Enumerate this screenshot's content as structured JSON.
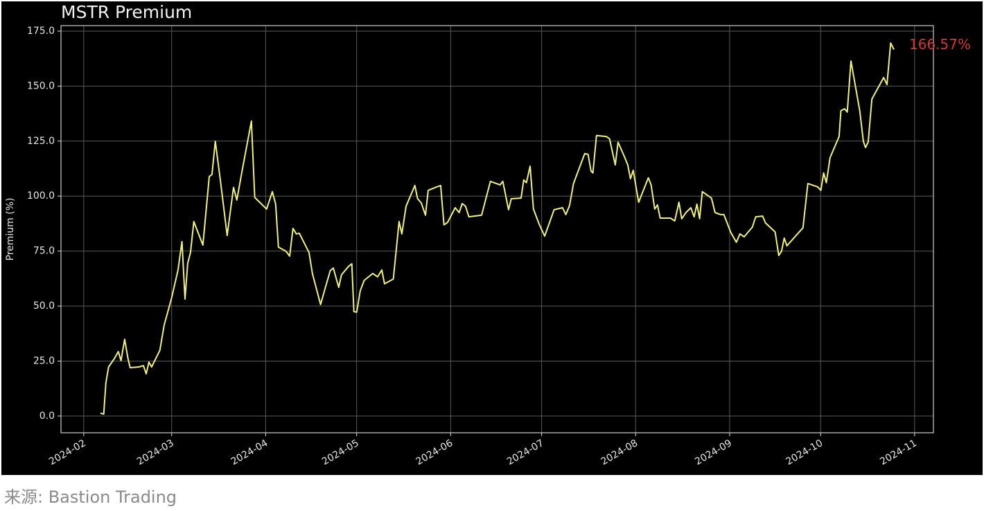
{
  "chart_data": {
    "type": "line",
    "title": "MSTR Premium",
    "ylabel": "Premium (%)",
    "annotation": "166.57%",
    "annotation_color": "#d9342b",
    "grid": true,
    "xlim": [
      24.5,
      312.2
    ],
    "ylim": [
      -7.6,
      177.5
    ],
    "xticks": [
      {
        "value": 32,
        "label": "2024-02"
      },
      {
        "value": 61,
        "label": "2024-03"
      },
      {
        "value": 92,
        "label": "2024-04"
      },
      {
        "value": 122,
        "label": "2024-05"
      },
      {
        "value": 153,
        "label": "2024-06"
      },
      {
        "value": 183,
        "label": "2024-07"
      },
      {
        "value": 214,
        "label": "2024-08"
      },
      {
        "value": 245,
        "label": "2024-09"
      },
      {
        "value": 275,
        "label": "2024-10"
      },
      {
        "value": 306,
        "label": "2024-11"
      }
    ],
    "yticks": [
      {
        "value": 0,
        "label": "0.0"
      },
      {
        "value": 25,
        "label": "25.0"
      },
      {
        "value": 50,
        "label": "50.0"
      },
      {
        "value": 75,
        "label": "75.0"
      },
      {
        "value": 100,
        "label": "100.0"
      },
      {
        "value": 125,
        "label": "125.0"
      },
      {
        "value": 150,
        "label": "150.0"
      },
      {
        "value": 175,
        "label": "175.0"
      }
    ],
    "x": [
      37.5,
      38.6,
      39.3,
      40.2,
      42.1,
      43.4,
      44.3,
      45.5,
      46.6,
      47.3,
      50.1,
      51.7,
      52.6,
      53.5,
      54.4,
      57.1,
      58.5,
      61.0,
      63.1,
      64.4,
      65.4,
      66.3,
      67.2,
      68.3,
      71.3,
      73.4,
      74.3,
      75.4,
      77.2,
      79.3,
      81.4,
      82.5,
      84.1,
      87.3,
      88.4,
      92.3,
      94.2,
      95.3,
      96.2,
      98.7,
      99.9,
      101.0,
      102.1,
      103.1,
      106.3,
      107.4,
      110.1,
      111.7,
      113.3,
      114.3,
      116.1,
      117.0,
      119.3,
      120.4,
      121.1,
      122.0,
      123.2,
      124.5,
      127.3,
      128.9,
      130.3,
      131.2,
      134.1,
      136.0,
      136.9,
      138.3,
      141.2,
      142.1,
      143.3,
      144.7,
      145.6,
      148.5,
      149.7,
      150.8,
      152.0,
      154.5,
      155.8,
      156.8,
      157.9,
      159.0,
      163.2,
      166.1,
      169.3,
      170.2,
      172.1,
      173.0,
      176.2,
      177.1,
      178.0,
      179.2,
      180.3,
      182.1,
      184.0,
      187.1,
      189.9,
      191.0,
      192.2,
      193.5,
      197.2,
      198.3,
      199.3,
      199.9,
      201.1,
      204.3,
      205.4,
      207.3,
      208.2,
      210.2,
      211.4,
      212.3,
      213.2,
      215.0,
      218.2,
      219.1,
      220.3,
      221.2,
      222.1,
      225.5,
      226.9,
      228.3,
      229.2,
      230.6,
      232.2,
      233.3,
      234.2,
      235.1,
      236.0,
      239.0,
      240.2,
      242.0,
      243.1,
      245.4,
      247.2,
      248.4,
      249.8,
      252.5,
      253.6,
      255.9,
      256.8,
      260.0,
      261.2,
      262.1,
      263.0,
      263.9,
      269.2,
      270.8,
      274.0,
      275.1,
      276.0,
      276.9,
      278.1,
      281.1,
      281.7,
      282.9,
      283.8,
      285.0,
      287.9,
      289.1,
      289.8,
      290.7,
      291.9,
      295.8,
      296.9,
      298.1,
      299.2
    ],
    "series": [
      {
        "name": "MSTR Premium",
        "color": "#f2f27a",
        "values": [
          1.3,
          0.9,
          15.1,
          22.3,
          26.1,
          29.3,
          25.2,
          34.9,
          26.1,
          22.0,
          22.3,
          22.9,
          19.2,
          24.5,
          22.3,
          29.9,
          41.2,
          53.8,
          66.4,
          79.3,
          53.2,
          69.5,
          74.3,
          88.4,
          77.7,
          108.9,
          109.8,
          124.9,
          105.7,
          82.1,
          103.9,
          98.2,
          110.5,
          134.1,
          99.4,
          94.1,
          102.0,
          96.3,
          76.8,
          74.9,
          72.7,
          85.3,
          82.8,
          83.1,
          74.3,
          64.8,
          50.7,
          58.5,
          66.1,
          67.3,
          58.5,
          64.2,
          68.0,
          69.2,
          47.5,
          47.2,
          57.0,
          61.7,
          64.8,
          63.3,
          66.4,
          60.1,
          62.3,
          88.4,
          82.8,
          95.4,
          104.8,
          98.8,
          96.9,
          91.3,
          102.6,
          104.2,
          104.8,
          86.9,
          88.1,
          94.7,
          92.5,
          96.6,
          95.4,
          90.6,
          91.3,
          106.7,
          105.1,
          106.7,
          93.8,
          98.8,
          99.1,
          107.3,
          106.1,
          113.6,
          94.1,
          87.5,
          81.8,
          93.8,
          94.7,
          91.6,
          95.7,
          105.7,
          119.3,
          119.0,
          111.4,
          110.5,
          127.5,
          127.1,
          126.1,
          114.2,
          124.5,
          118.3,
          114.2,
          107.9,
          111.7,
          97.2,
          108.3,
          105.1,
          94.1,
          96.0,
          90.0,
          90.0,
          88.7,
          97.2,
          89.7,
          92.5,
          94.7,
          90.6,
          96.3,
          89.7,
          102.0,
          99.1,
          92.5,
          91.6,
          91.6,
          83.4,
          79.0,
          82.8,
          81.5,
          85.9,
          90.6,
          90.9,
          87.8,
          83.7,
          73.0,
          74.9,
          80.9,
          77.4,
          85.6,
          105.7,
          104.2,
          102.6,
          110.5,
          106.1,
          117.4,
          127.1,
          138.8,
          139.7,
          138.2,
          161.4,
          138.8,
          124.9,
          122.1,
          124.6,
          144.1,
          153.9,
          150.7,
          169.6,
          166.57
        ]
      }
    ]
  },
  "source": "来源: Bastion Trading"
}
